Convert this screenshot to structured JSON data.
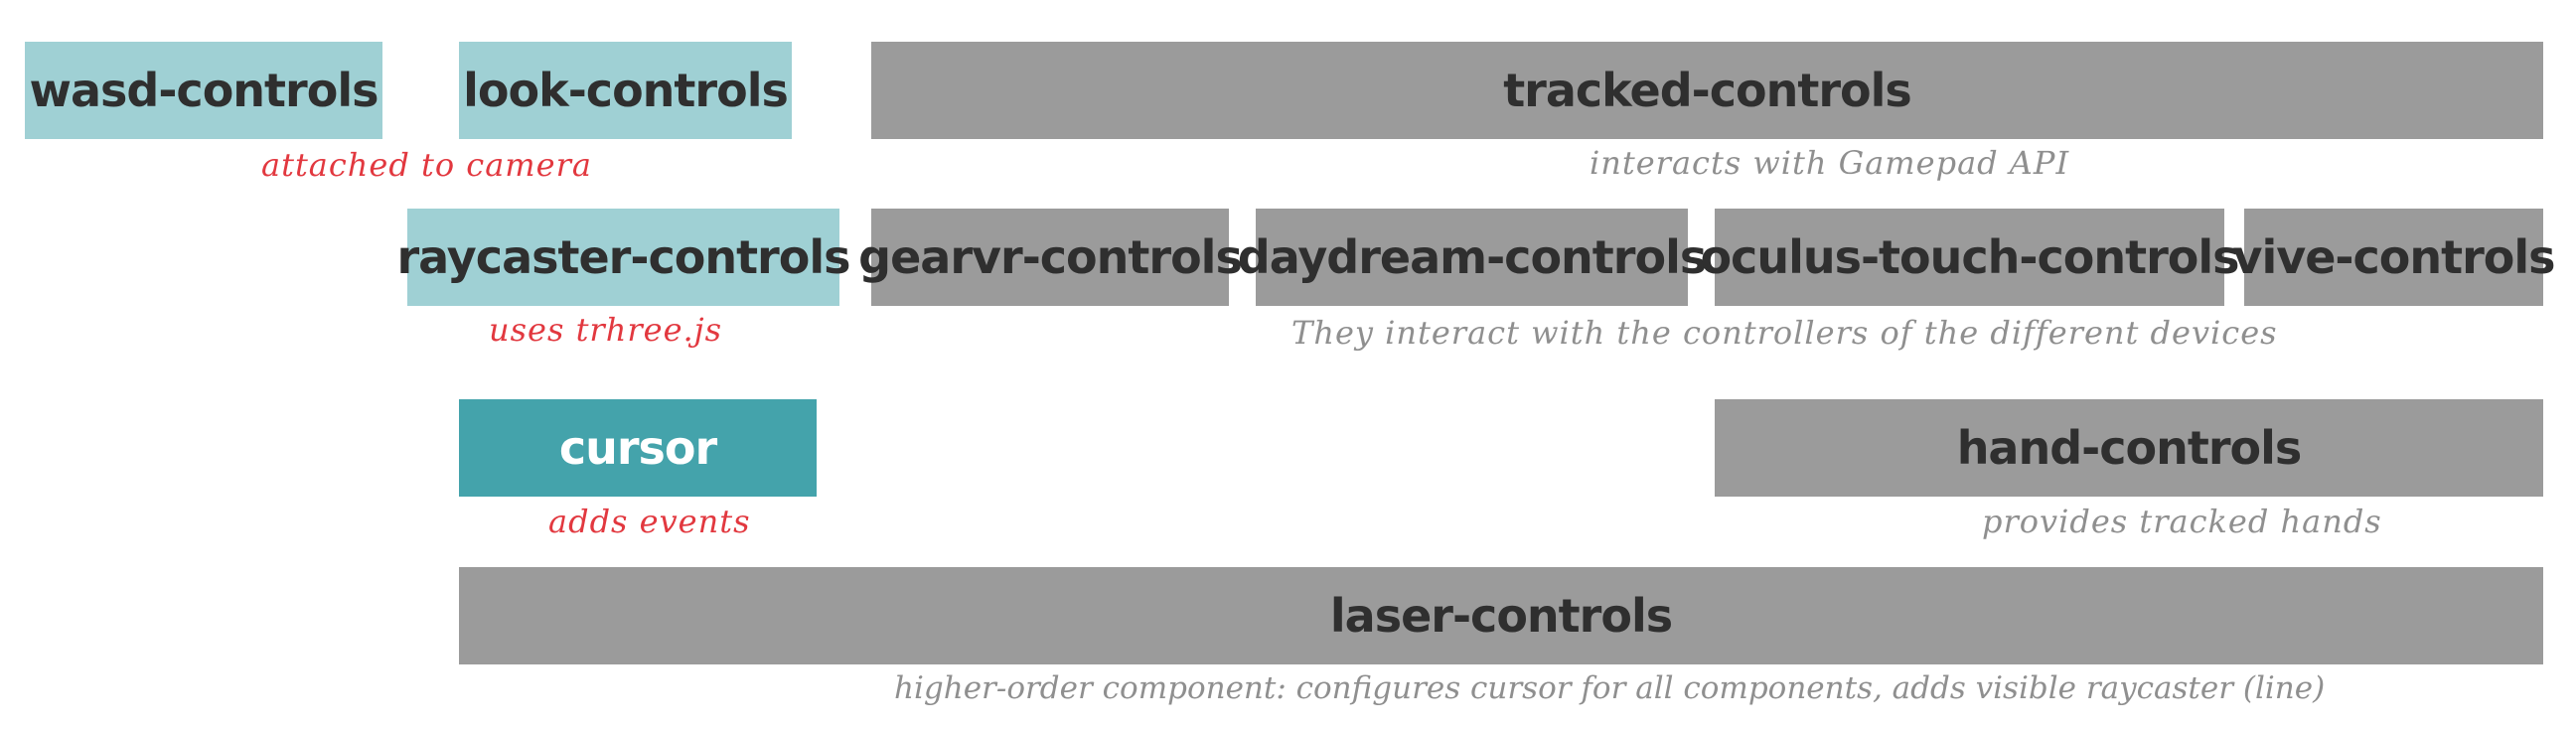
{
  "boxes": {
    "wasd": "wasd-controls",
    "look": "look-controls",
    "tracked": "tracked-controls",
    "raycaster": "raycaster-controls",
    "gearvr": "gearvr-controls",
    "daydream": "daydream-controls",
    "oculus": "oculus-touch-controls",
    "vive": "vive-controls",
    "cursor": "cursor",
    "hand": "hand-controls",
    "laser": "laser-controls"
  },
  "notes": {
    "camera": "attached to camera",
    "gamepad": "interacts with Gamepad API",
    "three": "uses  trhree.js",
    "devices": "They interact with the controllers of the different devices",
    "events": "adds events",
    "hands": "provides tracked hands",
    "laser": "higher-order component: configures cursor for all components, adds visible raycaster (line)"
  },
  "colors": {
    "light_teal": "#9fd0d4",
    "teal": "#44a3ab",
    "grey": "#9b9b9b",
    "red_note": "#e2383f",
    "grey_note": "#8f8f8f"
  }
}
